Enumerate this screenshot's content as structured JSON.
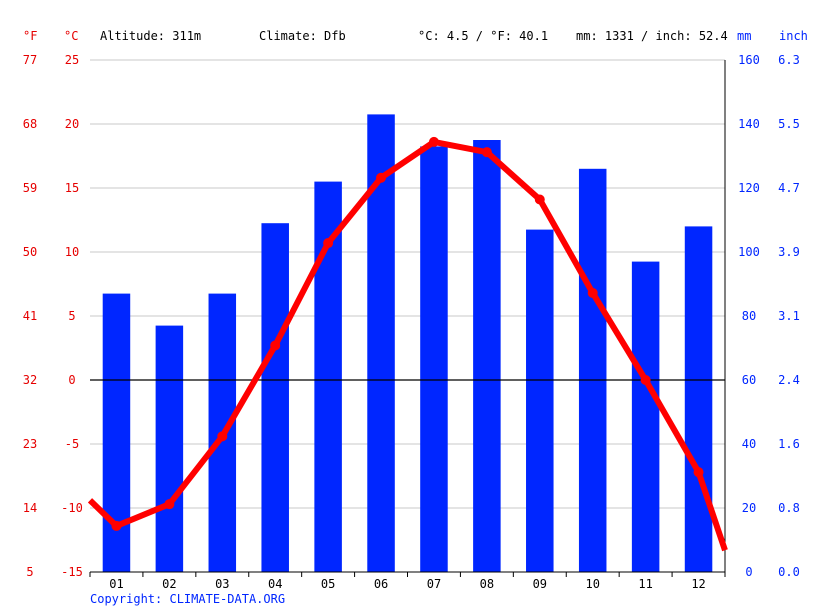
{
  "header": {
    "unit_f": "°F",
    "unit_c": "°C",
    "altitude": "Altitude: 311m",
    "climate": "Climate: Dfb",
    "temp_avg": "°C: 4.5 / °F: 40.1",
    "precip_total": "mm: 1331 / inch: 52.4",
    "unit_mm": "mm",
    "unit_inch": "inch"
  },
  "footer": {
    "copyright": "Copyright: CLIMATE-DATA.ORG"
  },
  "colors": {
    "precip_bar": "#0026ff",
    "temp_line": "#ff0000",
    "temp_axis": "#e60000",
    "precip_axis": "#0026ff",
    "grid": "#c8c8c8",
    "zero_line": "#000000"
  },
  "chart_data": {
    "type": "bar+line",
    "categories": [
      "01",
      "02",
      "03",
      "04",
      "05",
      "06",
      "07",
      "08",
      "09",
      "10",
      "11",
      "12"
    ],
    "temp_c_ylim": [
      -15,
      25
    ],
    "temp_c_ticks": [
      "25",
      "20",
      "15",
      "10",
      "5",
      "0",
      "-5",
      "-10",
      "-15"
    ],
    "temp_f_ticks": [
      "77",
      "68",
      "59",
      "50",
      "41",
      "32",
      "23",
      "14",
      "5"
    ],
    "precip_mm_ylim": [
      0,
      160
    ],
    "precip_mm_ticks": [
      "160",
      "140",
      "120",
      "100",
      "80",
      "60",
      "40",
      "20",
      "0"
    ],
    "precip_inch_ticks": [
      "6.3",
      "5.5",
      "4.7",
      "3.9",
      "3.1",
      "2.4",
      "1.6",
      "0.8",
      "0.0"
    ],
    "grid": true,
    "series": [
      {
        "kind": "bar",
        "axis": "precip_mm",
        "values": [
          87,
          77,
          87,
          109,
          122,
          143,
          133,
          135,
          107,
          126,
          97,
          108
        ]
      },
      {
        "kind": "line",
        "axis": "temp_c",
        "values": [
          -11.4,
          -9.7,
          -4.4,
          2.7,
          10.7,
          15.8,
          18.6,
          17.8,
          14.1,
          6.8,
          0.0,
          -7.2
        ],
        "edge_start": -9.4,
        "edge_end": -13.3
      }
    ]
  }
}
